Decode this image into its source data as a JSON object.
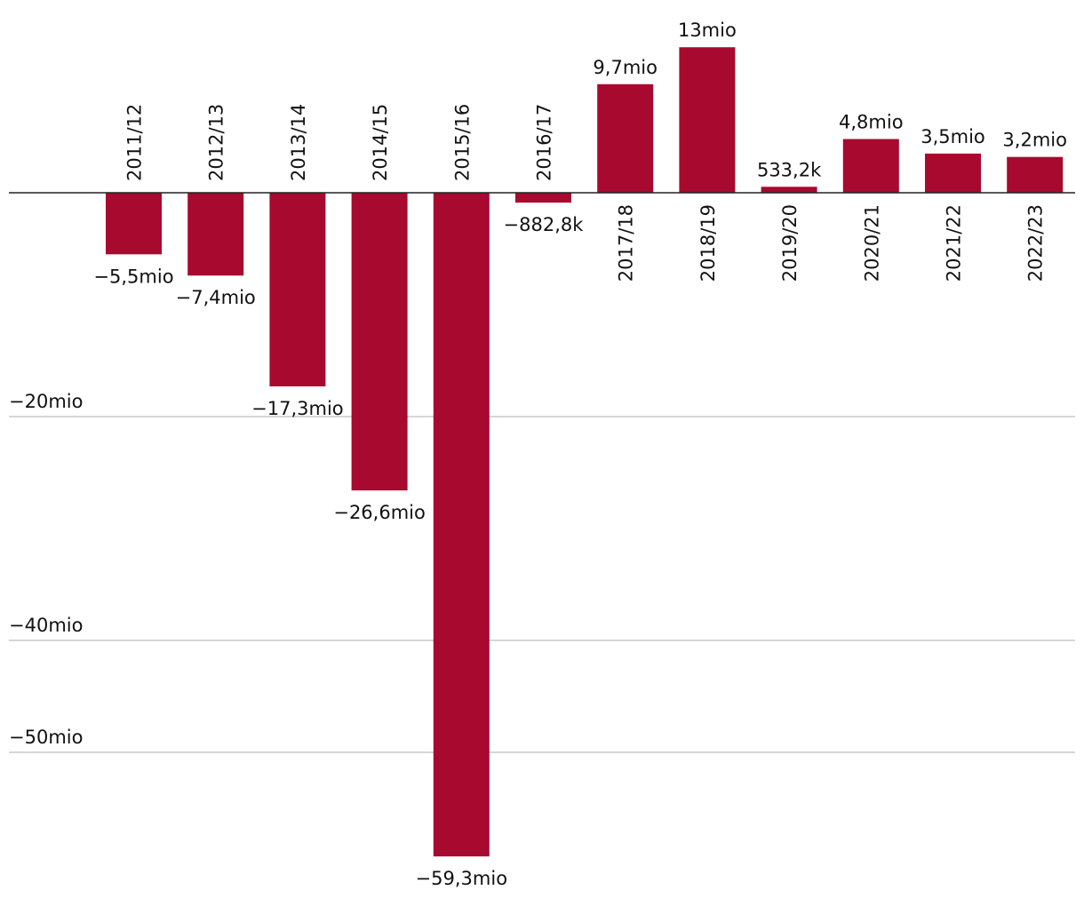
{
  "chart_data": {
    "type": "bar",
    "title": "",
    "xlabel": "",
    "ylabel": "",
    "categories": [
      "2011/12",
      "2012/13",
      "2013/14",
      "2014/15",
      "2015/16",
      "2016/17",
      "2017/18",
      "2018/19",
      "2019/20",
      "2020/21",
      "2021/22",
      "2022/23"
    ],
    "values": [
      -5500000,
      -7400000,
      -17300000,
      -26600000,
      -59300000,
      -882800,
      9700000,
      13000000,
      533200,
      4800000,
      3500000,
      3200000
    ],
    "value_labels": [
      "−5,5mio",
      "−7,4mio",
      "−17,3mio",
      "−26,6mio",
      "−59,3mio",
      "−882,8k",
      "9,7mio",
      "13mio",
      "533,2k",
      "4,8mio",
      "3,5mio",
      "3,2mio"
    ],
    "yticks": [
      {
        "value": -20000000,
        "label": "−20mio"
      },
      {
        "value": -40000000,
        "label": "−40mio"
      },
      {
        "value": -50000000,
        "label": "−50mio"
      }
    ],
    "ylim": [
      -61000000,
      14500000
    ],
    "grid": true,
    "bar_color": "#a8092f",
    "baseline_color": "#222222",
    "grid_color": "#c8c8c8"
  }
}
